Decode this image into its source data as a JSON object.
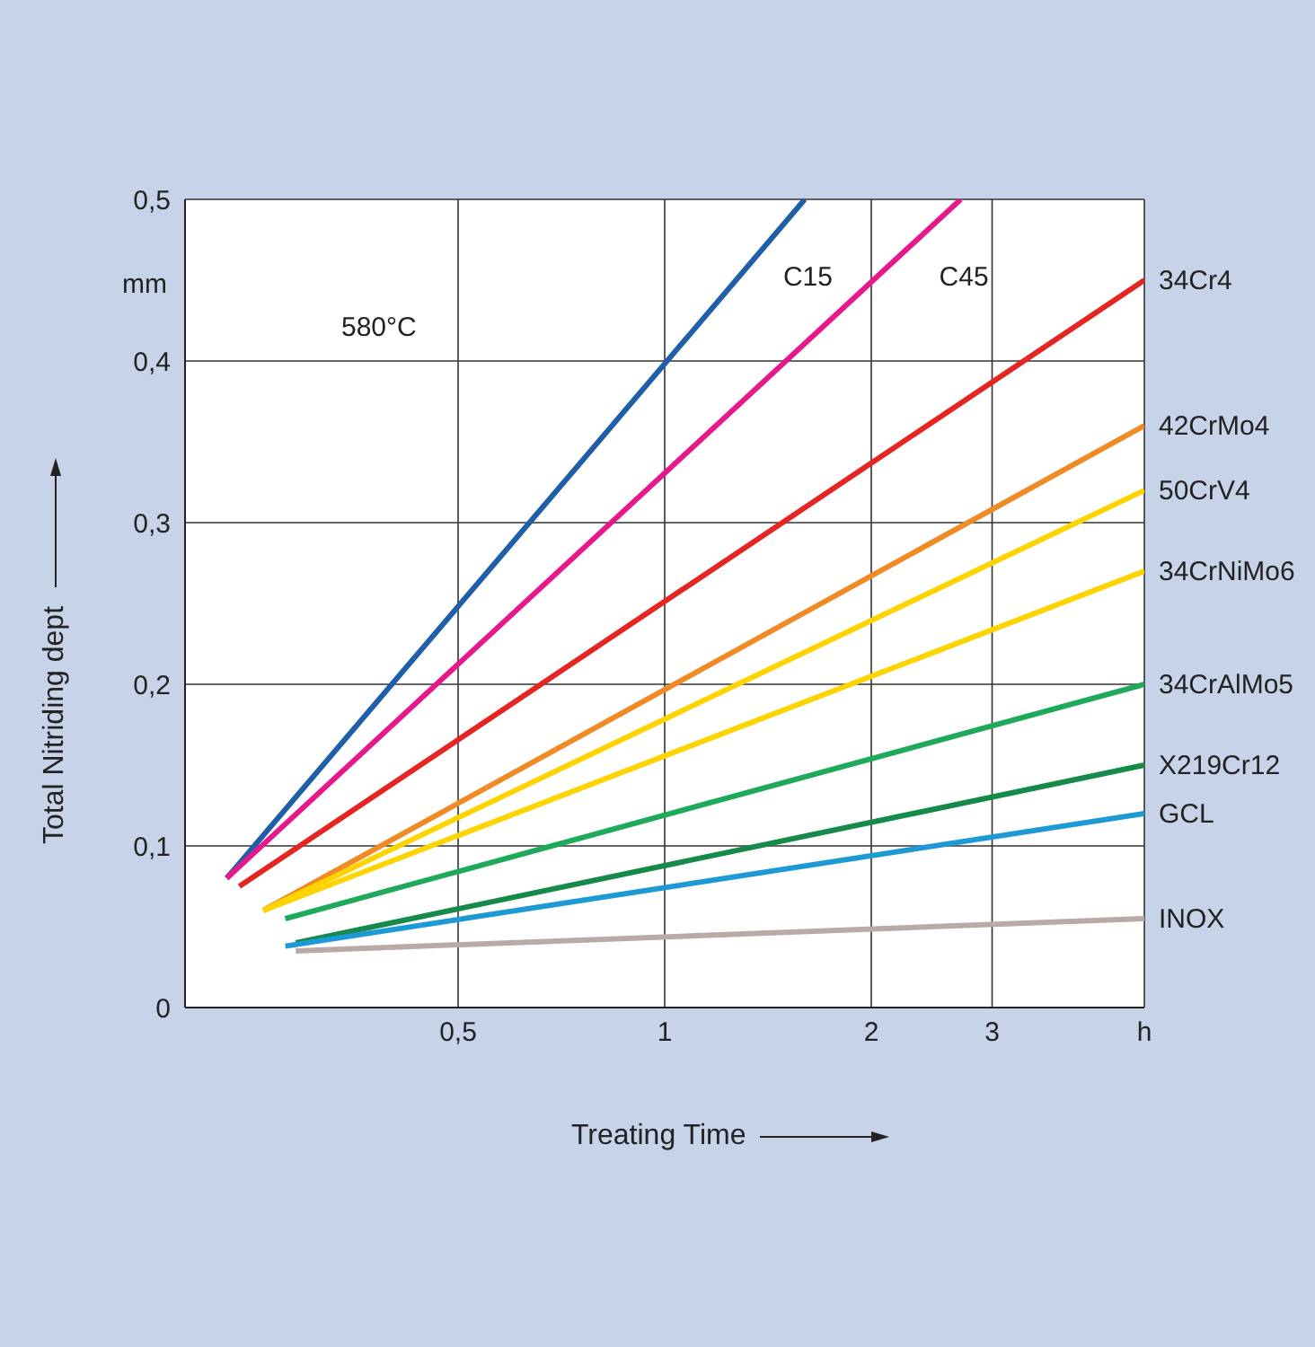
{
  "chart_data": {
    "type": "line",
    "xlabel": "Treating Time",
    "ylabel": "Total Nitriding dept",
    "annotations": [
      "mm",
      "580°C"
    ],
    "log": "x",
    "xlim": [
      0.2,
      5
    ],
    "xticks": [
      {
        "value": 0.5,
        "label": "0,5"
      },
      1,
      2,
      3,
      {
        "value": 5,
        "label": "h"
      }
    ],
    "ylim": [
      0,
      0.5
    ],
    "yticks": [
      0,
      {
        "value": 0.1,
        "label": "0,1"
      },
      {
        "value": 0.2,
        "label": "0,2"
      },
      {
        "value": 0.3,
        "label": "0,3"
      },
      {
        "value": 0.4,
        "label": "0,4"
      },
      {
        "value": 0.5,
        "label": "0,5"
      }
    ],
    "grid": true,
    "marker": "none",
    "line_style": "solid",
    "series": [
      {
        "name": "C15",
        "color": "#1f5fa8",
        "x": [
          0.23,
          1.6
        ],
        "values": [
          0.08,
          0.5
        ]
      },
      {
        "name": "C45",
        "color": "#e6198c",
        "x": [
          0.23,
          2.7
        ],
        "values": [
          0.08,
          0.5
        ]
      },
      {
        "name": "34Cr4",
        "color": "#e52521",
        "x": [
          0.24,
          5
        ],
        "values": [
          0.075,
          0.45
        ]
      },
      {
        "name": "42CrMo4",
        "color": "#f08a24",
        "x": [
          0.26,
          5
        ],
        "values": [
          0.06,
          0.36
        ]
      },
      {
        "name": "50CrV4",
        "color": "#fdd400",
        "x": [
          0.26,
          5
        ],
        "values": [
          0.06,
          0.32
        ]
      },
      {
        "name": "34CrNiMo6",
        "color": "#fdd400",
        "x": [
          0.26,
          5
        ],
        "values": [
          0.06,
          0.27
        ]
      },
      {
        "name": "34CrAlMo5",
        "color": "#1faa5a",
        "x": [
          0.28,
          5
        ],
        "values": [
          0.055,
          0.2
        ]
      },
      {
        "name": "X219Cr12",
        "color": "#168a4a",
        "x": [
          0.29,
          5
        ],
        "values": [
          0.04,
          0.15
        ]
      },
      {
        "name": "GCL",
        "color": "#1d9ad6",
        "x": [
          0.28,
          5
        ],
        "values": [
          0.038,
          0.12
        ]
      },
      {
        "name": "INOX",
        "color": "#b9aaa7",
        "x": [
          0.29,
          5
        ],
        "values": [
          0.035,
          0.055
        ]
      }
    ]
  }
}
